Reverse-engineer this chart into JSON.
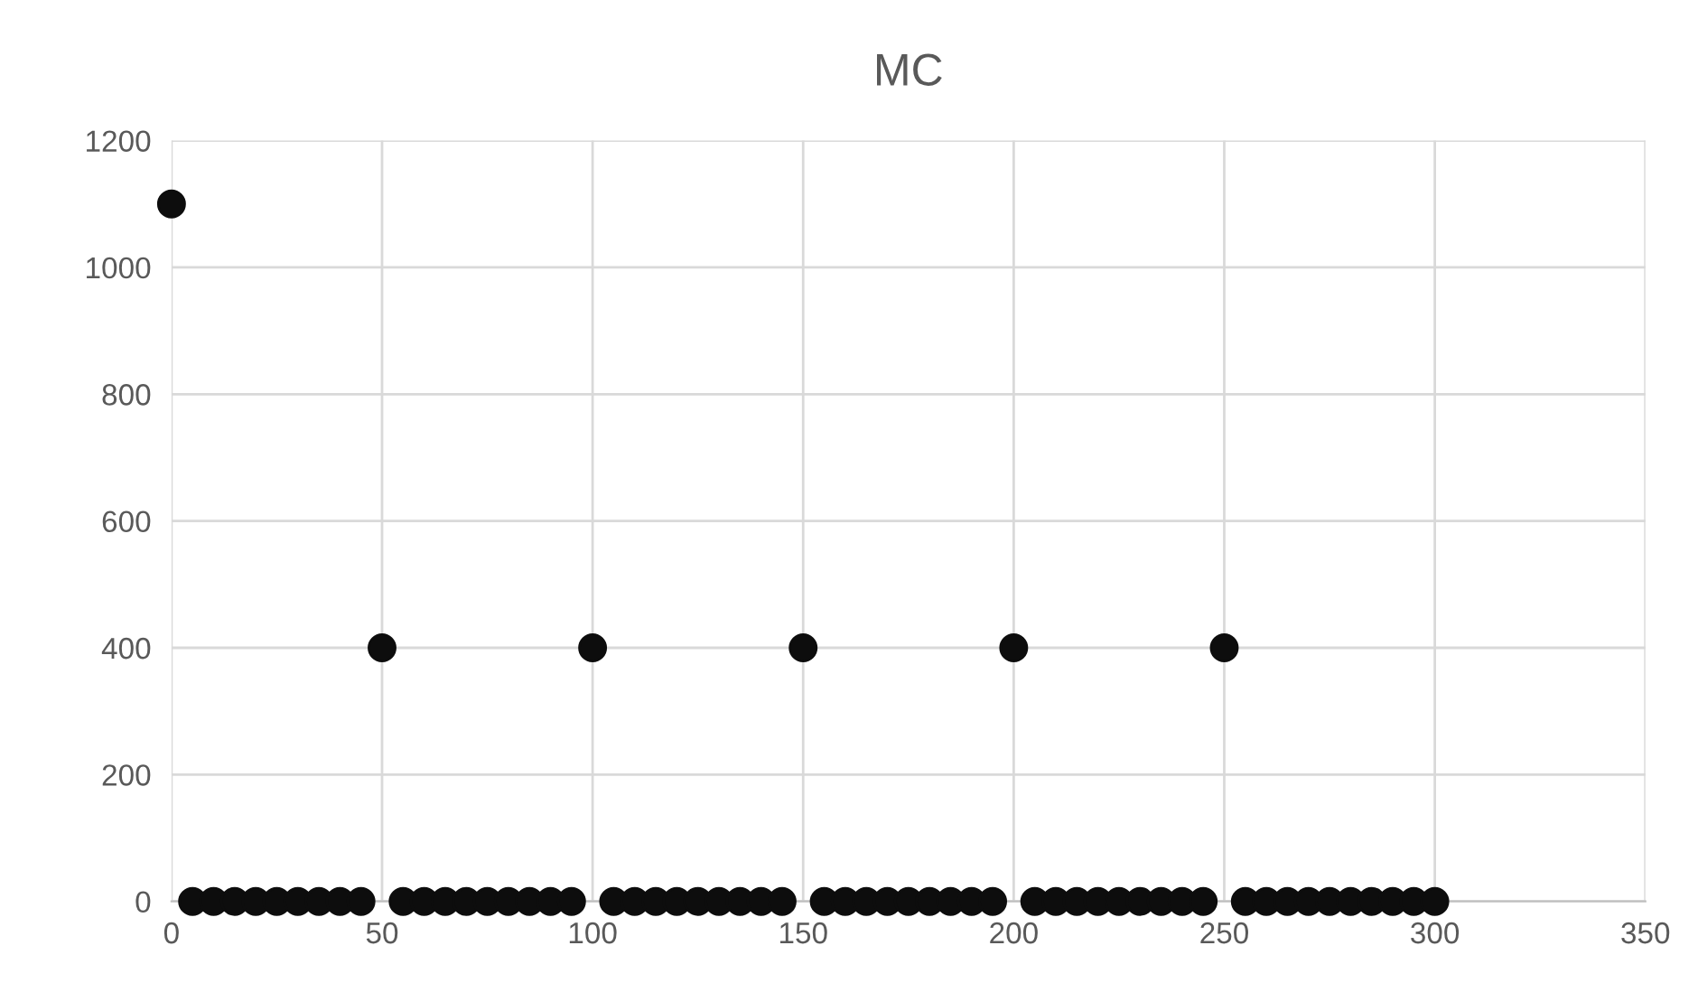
{
  "chart_data": {
    "type": "scatter",
    "title": "MC",
    "series": [
      {
        "color": "#0d0d0d",
        "x": [
          0,
          50,
          100,
          150,
          200,
          250,
          5,
          10,
          15,
          20,
          25,
          30,
          35,
          40,
          45,
          55,
          60,
          65,
          70,
          75,
          80,
          85,
          90,
          95,
          105,
          110,
          115,
          120,
          125,
          130,
          135,
          140,
          145,
          155,
          160,
          165,
          170,
          175,
          180,
          185,
          190,
          195,
          205,
          210,
          215,
          220,
          225,
          230,
          235,
          240,
          245,
          255,
          260,
          265,
          270,
          275,
          280,
          285,
          290,
          295,
          300
        ],
        "values": [
          1100,
          400,
          400,
          400,
          400,
          400,
          0,
          0,
          0,
          0,
          0,
          0,
          0,
          0,
          0,
          0,
          0,
          0,
          0,
          0,
          0,
          0,
          0,
          0,
          0,
          0,
          0,
          0,
          0,
          0,
          0,
          0,
          0,
          0,
          0,
          0,
          0,
          0,
          0,
          0,
          0,
          0,
          0,
          0,
          0,
          0,
          0,
          0,
          0,
          0,
          0,
          0,
          0,
          0,
          0,
          0,
          0,
          0,
          0,
          0,
          0
        ]
      }
    ],
    "xlim": [
      0,
      350
    ],
    "xticks": [
      0,
      50,
      100,
      150,
      200,
      250,
      300,
      350
    ],
    "ylim": [
      0,
      1200
    ],
    "yticks": [
      0,
      200,
      400,
      600,
      800,
      1000,
      1200
    ],
    "grid": true,
    "marker": "circle",
    "legend": false
  }
}
